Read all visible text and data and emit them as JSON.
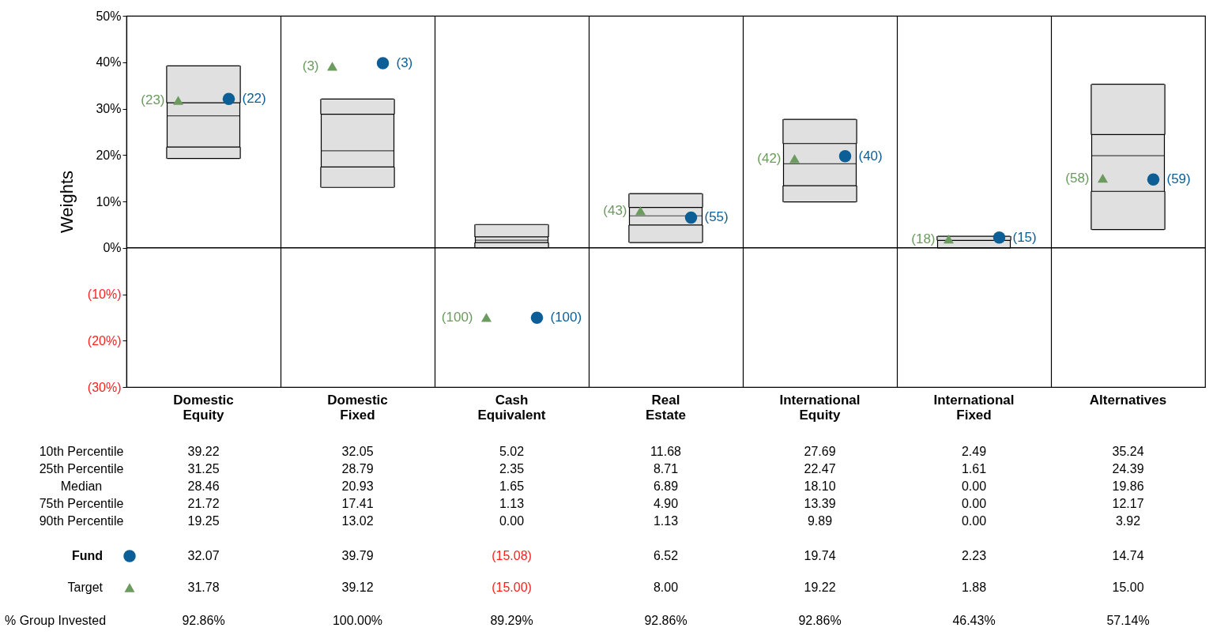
{
  "chart_data": {
    "type": "box",
    "ylabel": "Weights",
    "color": "#e0e0e0",
    "categories": [
      "Domestic Equity",
      "Domestic Fixed",
      "Cash Equivalent",
      "Real Estate",
      "International Equity",
      "International Fixed",
      "Alternatives"
    ],
    "boxes": [
      {
        "low": 19.25,
        "q1": 21.72,
        "median": 28.46,
        "q3": 31.25,
        "high": 39.22
      },
      {
        "low": 13.02,
        "q1": 17.41,
        "median": 20.93,
        "q3": 28.79,
        "high": 32.05
      },
      {
        "low": 0.0,
        "q1": 1.13,
        "median": 1.65,
        "q3": 2.35,
        "high": 5.02
      },
      {
        "low": 1.13,
        "q1": 4.9,
        "median": 6.89,
        "q3": 8.71,
        "high": 11.68
      },
      {
        "low": 9.89,
        "q1": 13.39,
        "median": 18.1,
        "q3": 22.47,
        "high": 27.69
      },
      {
        "low": 0.0,
        "q1": 0.0,
        "median": 0.0,
        "q3": 1.61,
        "high": 2.49
      },
      {
        "low": 3.92,
        "q1": 12.17,
        "median": 19.86,
        "q3": 24.39,
        "high": 35.24
      }
    ],
    "series": [
      {
        "name": "Fund",
        "type": "scatter",
        "marker": "circle",
        "color": "#0b5e96",
        "x": [
          "Domestic Equity",
          "Domestic Fixed",
          "Cash Equivalent",
          "Real Estate",
          "International Equity",
          "International Fixed",
          "Alternatives"
        ],
        "values": [
          32.07,
          39.79,
          -15.08,
          6.52,
          19.74,
          2.23,
          14.74
        ]
      },
      {
        "name": "Target",
        "type": "scatter",
        "marker": "triangle",
        "color": "#6b9b5e",
        "x": [
          "Domestic Equity",
          "Domestic Fixed",
          "Cash Equivalent",
          "Real Estate",
          "International Equity",
          "International Fixed",
          "Alternatives"
        ],
        "values": [
          31.78,
          39.12,
          -15.0,
          8.0,
          19.22,
          1.88,
          15.0
        ]
      }
    ],
    "ylim": [
      -30,
      50
    ],
    "yticks": [
      {
        "value": 50,
        "label": "50%"
      },
      {
        "value": 40,
        "label": "40%"
      },
      {
        "value": 30,
        "label": "30%"
      },
      {
        "value": 20,
        "label": "20%"
      },
      {
        "value": 10,
        "label": "10%"
      },
      {
        "value": 0,
        "label": "0%"
      },
      {
        "value": -10,
        "label": "(10%)"
      },
      {
        "value": -20,
        "label": "(20%)"
      },
      {
        "value": -30,
        "label": "(30%)"
      }
    ],
    "ref_lines": [
      {
        "axis": "y",
        "value": 0
      }
    ],
    "grid": "x",
    "legend": "bottom",
    "annotations": [
      "10th Percentile",
      "39.22",
      "32.05",
      "5.02",
      "11.68",
      "27.69",
      "2.49",
      "35.24",
      "25th Percentile",
      "31.25",
      "28.79",
      "2.35",
      "8.71",
      "22.47",
      "1.61",
      "24.39",
      "Median",
      "28.46",
      "20.93",
      "1.65",
      "6.89",
      "18.10",
      "0.00",
      "19.86",
      "75th Percentile",
      "21.72",
      "17.41",
      "1.13",
      "4.90",
      "13.39",
      "0.00",
      "12.17",
      "90th Percentile",
      "19.25",
      "13.02",
      "0.00",
      "1.13",
      "9.89",
      "0.00",
      "3.92",
      "32.07",
      "39.79",
      "(15.08)",
      "6.52",
      "19.74",
      "2.23",
      "14.74",
      "31.78",
      "39.12",
      "(15.00)",
      "8.00",
      "19.22",
      "1.88",
      "15.00",
      "% Group Invested",
      "92.86%",
      "100.00%",
      "89.29%",
      "92.86%",
      "92.86%",
      "46.43%",
      "57.14%",
      "(22)",
      "(3)",
      "(100)",
      "(55)",
      "(40)",
      "(15)",
      "(59)",
      "(23)",
      "(3)",
      "(100)",
      "(43)",
      "(42)",
      "(18)",
      "(58)"
    ]
  }
}
